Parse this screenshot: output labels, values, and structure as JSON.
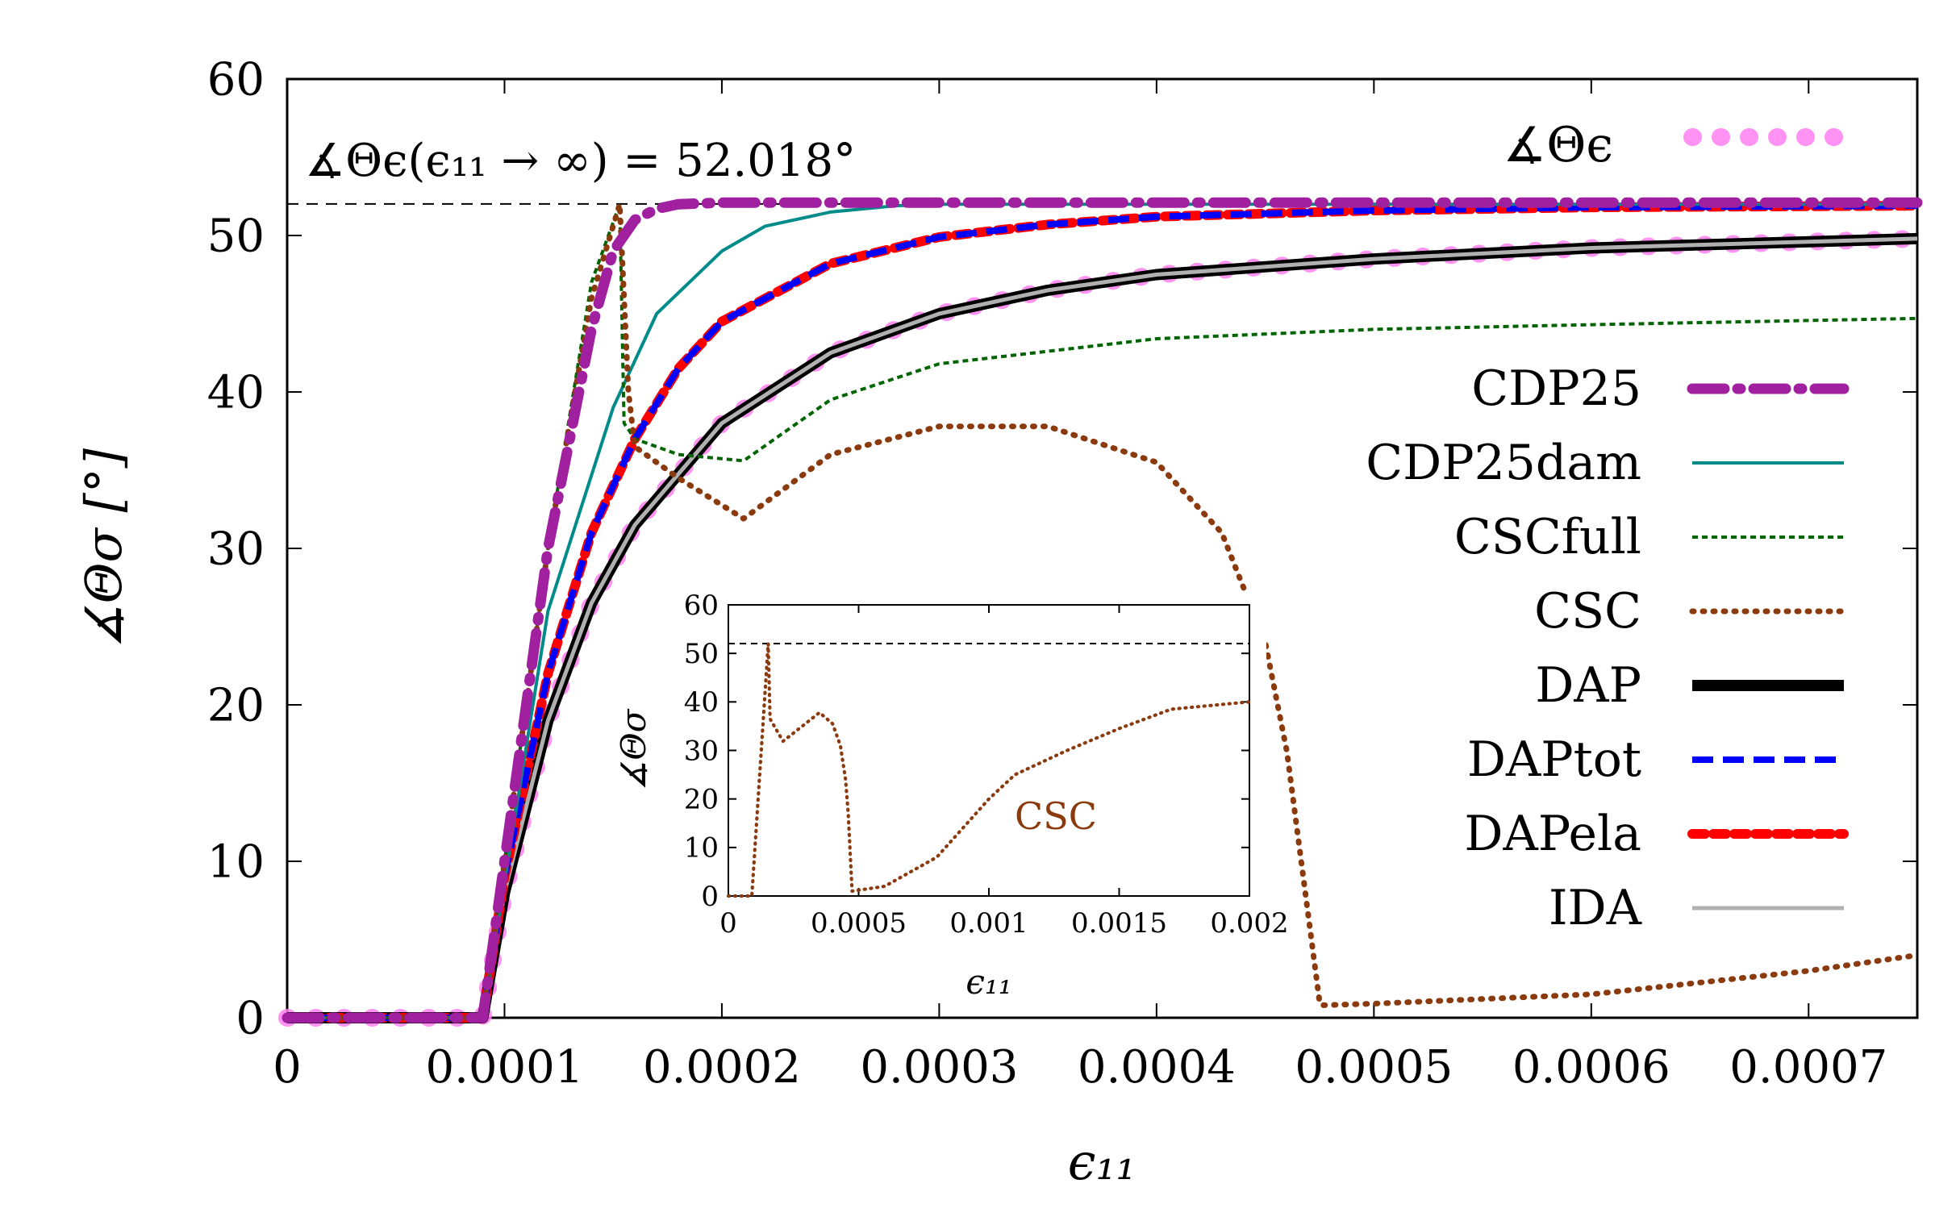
{
  "chart_data": [
    {
      "type": "line",
      "xlabel": "ϵ₁₁",
      "ylabel": "∡Θσ [°]",
      "xlim": [
        0,
        0.00075
      ],
      "ylim": [
        0,
        60
      ],
      "xticks": [
        "0",
        "0.0001",
        "0.0002",
        "0.0003",
        "0.0004",
        "0.0005",
        "0.0006",
        "0.0007"
      ],
      "yticks": [
        "0",
        "10",
        "20",
        "30",
        "40",
        "50",
        "60"
      ],
      "grid": false,
      "legend_position": "right",
      "annotation": "∡Θϵ(ϵ₁₁ → ∞) = 52.018°",
      "reference_line": 52.018,
      "series": [
        {
          "name": "∡Θϵ",
          "color": "#FF80F0",
          "x": [
            0,
            9e-05,
            0.0001,
            0.00012,
            0.00014,
            0.00016,
            0.0002,
            0.00025,
            0.0003,
            0.00035,
            0.0004,
            0.0005,
            0.0006,
            0.00075
          ],
          "y": [
            0,
            0,
            8,
            19,
            26.5,
            31.5,
            38,
            42.5,
            45,
            46.5,
            47.5,
            48.5,
            49.2,
            49.8
          ]
        },
        {
          "name": "CDP25",
          "color": "#A020A0",
          "x": [
            0,
            9e-05,
            0.0001,
            0.00012,
            0.00014,
            0.00015,
            0.00016,
            0.00017,
            0.00018,
            0.0002,
            0.00075
          ],
          "y": [
            0,
            0,
            10,
            30,
            44,
            49,
            51,
            51.7,
            52,
            52.1,
            52.1
          ]
        },
        {
          "name": "CDP25dam",
          "color": "#008B8B",
          "x": [
            0,
            9e-05,
            0.00012,
            0.00015,
            0.00017,
            0.0002,
            0.00022,
            0.00025,
            0.00028,
            0.0003,
            0.00075
          ],
          "y": [
            0,
            0,
            26,
            39,
            45,
            49,
            50.6,
            51.5,
            51.9,
            52,
            52
          ]
        },
        {
          "name": "CSCfull",
          "color": "#006400",
          "x": [
            0,
            9e-05,
            0.0001,
            0.00012,
            0.00014,
            0.000153,
            0.000155,
            0.00016,
            0.00018,
            0.00021,
            0.00025,
            0.0003,
            0.00035,
            0.0004,
            0.0005,
            0.0006,
            0.00075
          ],
          "y": [
            0,
            0,
            10,
            30,
            47,
            52,
            38,
            37,
            36,
            35.6,
            39.5,
            41.8,
            42.6,
            43.4,
            44,
            44.3,
            44.7
          ]
        },
        {
          "name": "CSC",
          "color": "#8B3A0E",
          "x": [
            0,
            9e-05,
            0.0001,
            0.00012,
            0.00014,
            0.000153,
            0.000157,
            0.00016,
            0.00018,
            0.00021,
            0.00025,
            0.0003,
            0.00035,
            0.0004,
            0.00043,
            0.00045,
            0.00046,
            0.000475,
            0.000476,
            0.0005,
            0.0006,
            0.0007,
            0.00075
          ],
          "y": [
            0,
            0,
            10,
            30,
            46,
            52,
            40,
            36.5,
            34.5,
            31.9,
            36,
            37.8,
            37.8,
            35.5,
            31,
            24,
            17,
            1,
            0.8,
            0.9,
            1.5,
            3,
            4
          ]
        },
        {
          "name": "DAP",
          "color": "#000000",
          "x": [
            0,
            9e-05,
            0.0001,
            0.00012,
            0.00014,
            0.00016,
            0.0002,
            0.00025,
            0.0003,
            0.00035,
            0.0004,
            0.0005,
            0.0006,
            0.00075
          ],
          "y": [
            0,
            0,
            8,
            19,
            26.5,
            31.5,
            38,
            42.5,
            45,
            46.5,
            47.5,
            48.5,
            49.2,
            49.8
          ]
        },
        {
          "name": "DAPtot",
          "color": "#0000FF",
          "x": [
            0,
            9e-05,
            0.0001,
            0.00012,
            0.00014,
            0.00016,
            0.00018,
            0.0002,
            0.00025,
            0.0003,
            0.00035,
            0.0004,
            0.0005,
            0.0006,
            0.00075
          ],
          "y": [
            0,
            0,
            9,
            22,
            31,
            37,
            41.5,
            44.5,
            48.2,
            49.9,
            50.7,
            51.2,
            51.6,
            51.8,
            51.9
          ]
        },
        {
          "name": "DAPela",
          "color": "#FF0000",
          "x": [
            0,
            9e-05,
            0.0001,
            0.00012,
            0.00014,
            0.00016,
            0.00018,
            0.0002,
            0.00025,
            0.0003,
            0.00035,
            0.0004,
            0.0005,
            0.0006,
            0.00075
          ],
          "y": [
            0,
            0,
            9,
            22,
            31,
            37,
            41.5,
            44.5,
            48.2,
            49.9,
            50.7,
            51.2,
            51.6,
            51.8,
            51.9
          ]
        },
        {
          "name": "IDA",
          "color": "#B0B0B0",
          "x": [
            0,
            9e-05,
            0.0001,
            0.00012,
            0.00014,
            0.00016,
            0.0002,
            0.00025,
            0.0003,
            0.00035,
            0.0004,
            0.0005,
            0.0006,
            0.00075
          ],
          "y": [
            0,
            0,
            8,
            19,
            26.5,
            31.5,
            38,
            42.5,
            45,
            46.5,
            47.5,
            48.5,
            49.2,
            49.8
          ]
        }
      ]
    },
    {
      "type": "line",
      "xlabel": "ϵ₁₁",
      "ylabel": "∡Θσ",
      "xlim": [
        0,
        0.002
      ],
      "ylim": [
        0,
        60
      ],
      "xticks": [
        "0",
        "0.0005",
        "0.001",
        "0.0015",
        "0.002"
      ],
      "yticks": [
        "0",
        "10",
        "20",
        "30",
        "40",
        "50",
        "60"
      ],
      "annotation": "CSC",
      "reference_line": 52.018,
      "series": [
        {
          "name": "CSC",
          "color": "#8B3A0E",
          "x": [
            0,
            9e-05,
            0.000153,
            0.00016,
            0.00021,
            0.00035,
            0.0004,
            0.00043,
            0.00045,
            0.00046,
            0.000475,
            0.0006,
            0.0008,
            0.001,
            0.0011,
            0.0013,
            0.0015,
            0.0017,
            0.0019,
            0.002
          ],
          "y": [
            0,
            0,
            52,
            36.5,
            31.9,
            37.8,
            35.5,
            31,
            24,
            17,
            1,
            2,
            8,
            20,
            25,
            30,
            34.5,
            38.5,
            39.5,
            40
          ]
        }
      ]
    }
  ]
}
